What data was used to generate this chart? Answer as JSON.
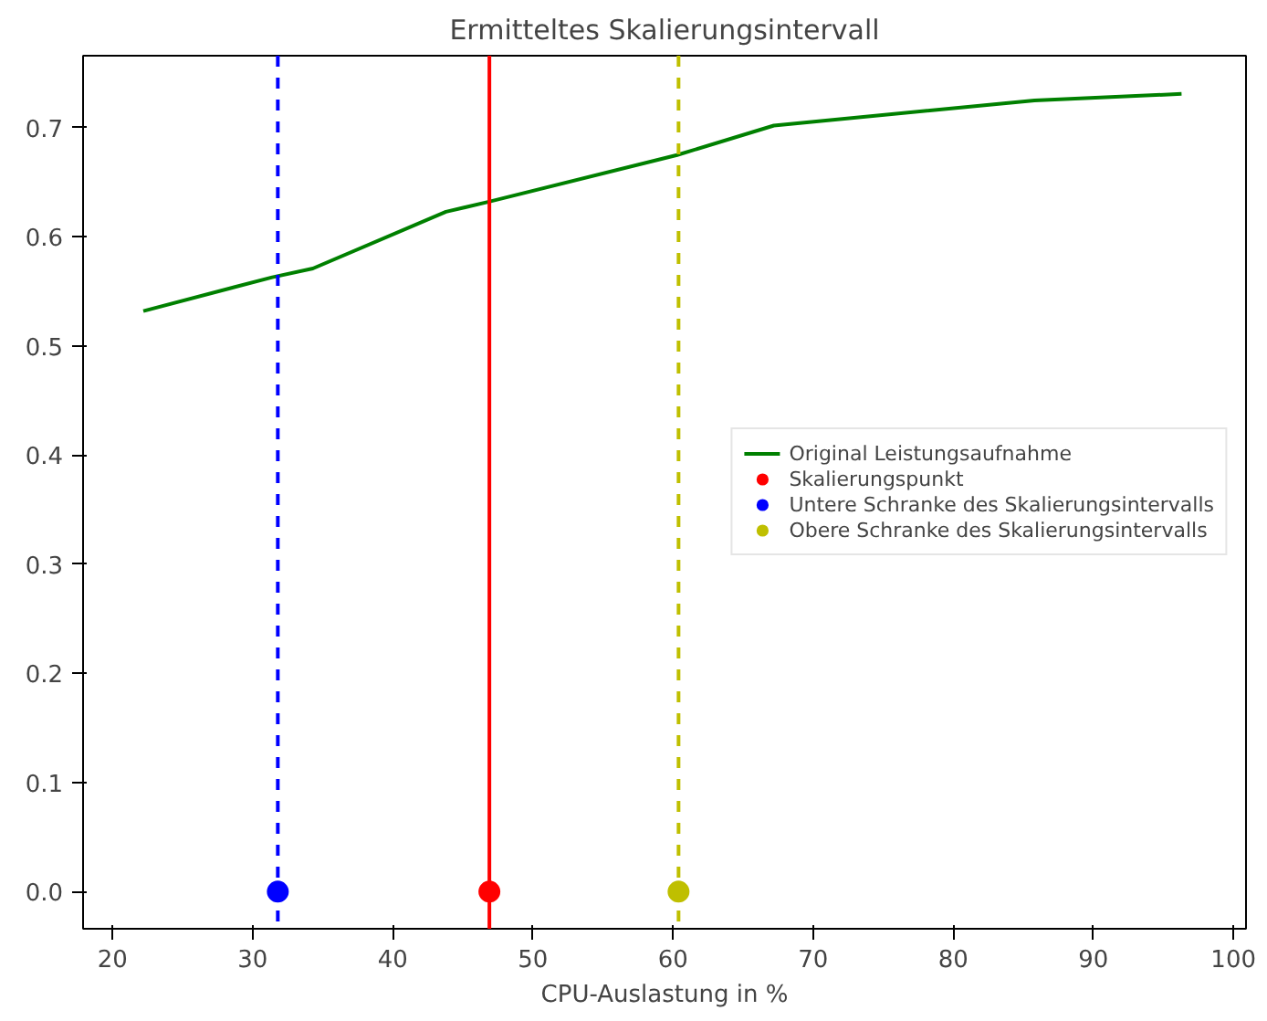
{
  "chart_data": {
    "type": "line",
    "title": "Ermitteltes Skalierungsintervall",
    "xlabel": "CPU-Auslastung in %",
    "xlim": [
      17.9,
      100.9
    ],
    "ylim": [
      -0.034,
      0.766
    ],
    "xticks": [
      20,
      30,
      40,
      50,
      60,
      70,
      80,
      90,
      100
    ],
    "yticks": [
      {
        "value": 0,
        "label": "0.0"
      },
      0.1,
      0.2,
      0.3,
      0.4,
      0.5,
      0.6,
      0.7
    ],
    "grid": false,
    "legend": "right",
    "series": [
      {
        "name": "Original Leistungsaufnahme",
        "color": "#008000",
        "x": [
          22.2,
          31.4,
          34.3,
          43.8,
          46.8,
          60.3,
          67.2,
          85.8,
          96.3
        ],
        "values": [
          0.532,
          0.563,
          0.571,
          0.623,
          0.632,
          0.675,
          0.702,
          0.725,
          0.731
        ]
      },
      {
        "type": "scatter",
        "marker": "circle",
        "name": "Skalierungspunkt",
        "color": "#ff0000",
        "x": [
          46.9
        ],
        "values": [
          0
        ]
      },
      {
        "type": "scatter",
        "marker": "circle",
        "name": "Untere Schranke des Skalierungsintervalls",
        "color": "#0000ff",
        "x": [
          31.8
        ],
        "values": [
          0
        ]
      },
      {
        "type": "scatter",
        "marker": "circle",
        "name": "Obere Schranke des Skalierungsintervalls",
        "color": "#bfbf00",
        "x": [
          60.4
        ],
        "values": [
          0
        ]
      }
    ],
    "ref_lines": [
      {
        "axis": "x",
        "value": 31.8,
        "color": "#0000ff",
        "line_style": "dashed"
      },
      {
        "axis": "x",
        "value": 46.9,
        "color": "#ff0000",
        "line_style": "solid"
      },
      {
        "axis": "x",
        "value": 60.4,
        "color": "#bfbf00",
        "line_style": "dashed"
      }
    ]
  }
}
